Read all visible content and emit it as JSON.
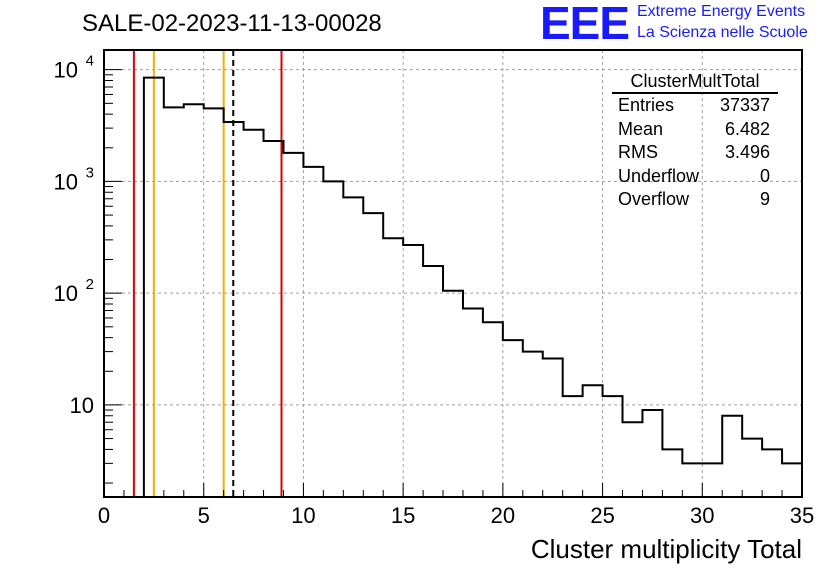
{
  "title": "SALE-02-2023-11-13-00028",
  "logo": {
    "text": "EEE",
    "line1": "Extreme Energy Events",
    "line2": "La Scienza nelle Scuole",
    "color": "#1a1aff"
  },
  "stats": {
    "name": "ClusterMultTotal",
    "rows": [
      {
        "label": "Entries",
        "value": "37337"
      },
      {
        "label": "Mean",
        "value": "6.482"
      },
      {
        "label": "RMS",
        "value": "3.496"
      },
      {
        "label": "Underflow",
        "value": "0"
      },
      {
        "label": "Overflow",
        "value": "9"
      }
    ]
  },
  "chart_data": {
    "type": "bar",
    "style": "step-histogram",
    "xlabel": "Cluster multiplicity Total",
    "ylabel": "",
    "xlim": [
      0,
      35
    ],
    "ylim": [
      1.5,
      15000
    ],
    "yscale": "log",
    "grid": true,
    "bin_width": 1,
    "x_ticks": [
      "0",
      "5",
      "10",
      "15",
      "20",
      "25",
      "30",
      "35"
    ],
    "y_ticks": [
      {
        "value": 10,
        "label": "10"
      },
      {
        "value": 100,
        "label": "10",
        "sup": "2"
      },
      {
        "value": 1000,
        "label": "10",
        "sup": "3"
      },
      {
        "value": 10000,
        "label": "10",
        "sup": "4"
      }
    ],
    "bins": [
      {
        "x": 2.5,
        "y": 8500
      },
      {
        "x": 3.5,
        "y": 4600
      },
      {
        "x": 4.5,
        "y": 4900
      },
      {
        "x": 5.5,
        "y": 4500
      },
      {
        "x": 6.5,
        "y": 3400
      },
      {
        "x": 7.5,
        "y": 2900
      },
      {
        "x": 8.5,
        "y": 2300
      },
      {
        "x": 9.5,
        "y": 1800
      },
      {
        "x": 10.5,
        "y": 1350
      },
      {
        "x": 11.5,
        "y": 1000
      },
      {
        "x": 12.5,
        "y": 720
      },
      {
        "x": 13.5,
        "y": 520
      },
      {
        "x": 14.5,
        "y": 310
      },
      {
        "x": 15.5,
        "y": 270
      },
      {
        "x": 16.5,
        "y": 175
      },
      {
        "x": 17.5,
        "y": 105
      },
      {
        "x": 18.5,
        "y": 73
      },
      {
        "x": 19.5,
        "y": 55
      },
      {
        "x": 20.5,
        "y": 38
      },
      {
        "x": 21.5,
        "y": 30
      },
      {
        "x": 22.5,
        "y": 26
      },
      {
        "x": 23.5,
        "y": 12
      },
      {
        "x": 24.5,
        "y": 15
      },
      {
        "x": 25.5,
        "y": 12
      },
      {
        "x": 26.5,
        "y": 7
      },
      {
        "x": 27.5,
        "y": 9
      },
      {
        "x": 28.5,
        "y": 4
      },
      {
        "x": 29.5,
        "y": 3
      },
      {
        "x": 30.5,
        "y": 3
      },
      {
        "x": 31.5,
        "y": 8
      },
      {
        "x": 32.5,
        "y": 5
      },
      {
        "x": 33.5,
        "y": 4
      },
      {
        "x": 34.5,
        "y": 3
      }
    ],
    "markers": [
      {
        "x": 1.5,
        "color": "#e00000",
        "style": "solid"
      },
      {
        "x": 2.5,
        "color": "#f0b000",
        "style": "solid"
      },
      {
        "x": 6.0,
        "color": "#f0b000",
        "style": "solid"
      },
      {
        "x": 6.482,
        "color": "#000000",
        "style": "dashed"
      },
      {
        "x": 8.9,
        "color": "#e00000",
        "style": "solid"
      }
    ]
  }
}
